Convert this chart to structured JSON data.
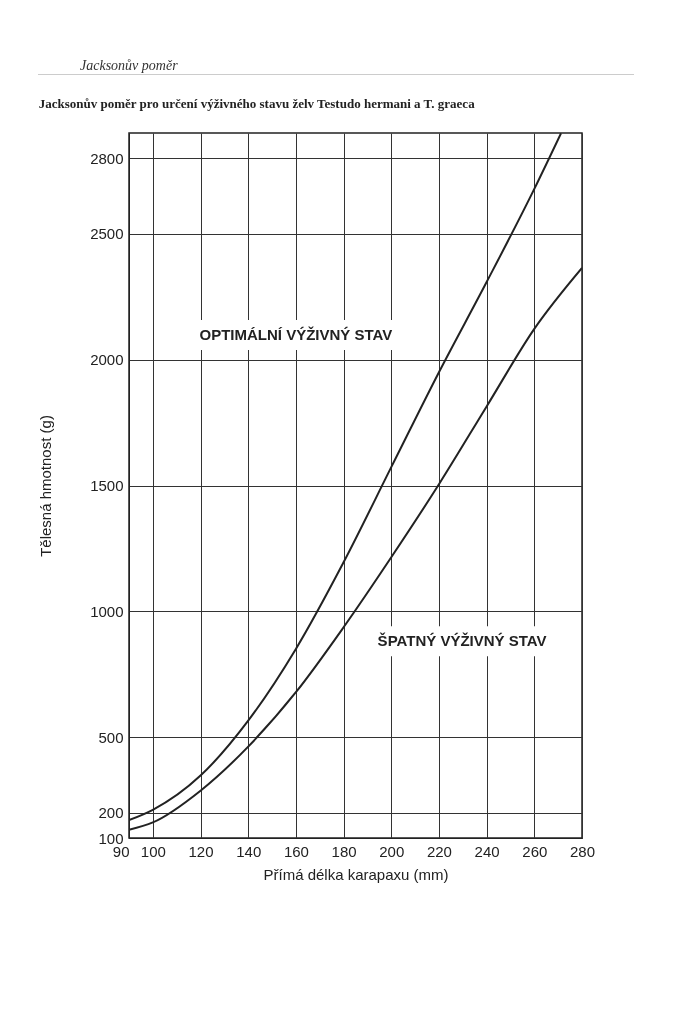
{
  "chart_data": {
    "type": "line",
    "title": "Jacksonův poměr pro určení výživného stavu želv Testudo hermani a T. graeca",
    "xlabel": "Přímá délka karapaxu (mm)",
    "ylabel": "Tělesná hmotnost (g)",
    "annotations": [
      "Jacksonův poměr",
      "OPTIMÁLNÍ VÝŽIVNÝ STAV",
      "ŠPATNÝ VÝŽIVNÝ STAV"
    ],
    "series": [
      {
        "color": "#222222",
        "x": [
          90,
          100,
          120,
          140,
          160,
          180,
          200,
          220,
          240,
          260,
          271.2
        ],
        "values": [
          171,
          212,
          348,
          566,
          851,
          1195,
          1573,
          1950,
          2308,
          2678,
          2899
        ]
      },
      {
        "color": "#222222",
        "x": [
          90,
          100,
          120,
          140,
          160,
          180,
          200,
          220,
          240,
          260,
          280
        ],
        "values": [
          133,
          162,
          288,
          463,
          679,
          937,
          1215,
          1505,
          1814,
          2122,
          2364
        ]
      }
    ],
    "xlim": [
      90,
      280
    ],
    "xticks": [
      90,
      100,
      120,
      140,
      160,
      180,
      200,
      220,
      240,
      260,
      280
    ],
    "ylim": [
      100,
      2900
    ],
    "yticks": [
      100,
      200,
      500,
      1000,
      1500,
      2000,
      2500,
      2800
    ],
    "grid": true,
    "marker": "none",
    "line_style": "solid"
  }
}
